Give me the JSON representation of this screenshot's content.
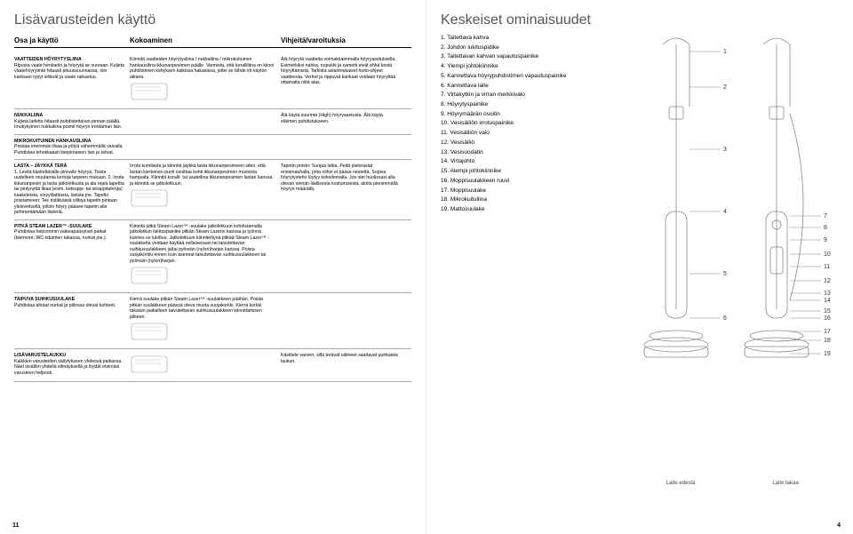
{
  "leftPage": {
    "title": "Lisävarusteiden käyttö",
    "columns": {
      "c1": "Osa ja käyttö",
      "c2": "Kokoaminen",
      "c3": "Vihjeitä/varoituksia"
    },
    "rows": [
      {
        "c1_title": "VAATTEIDEN HÖYRYTYSLIINA",
        "c1_body": "Ripusta vaate henkariin ja höyrytä se suoraan. Kuljeta vaatehöyrytintä hitaasti pituussuunnassa, niin kankaan rypyt siliävät ja vaate raikastuu.",
        "c2_body": "Kiinnitä vaatteiden höyrytysliina / nukkaliina / mikrokuituinen hankausliina ikkunanpesimen päälle. Varmista, että koralliliina on kiinni puhdistimen kehyksen kaikissa hakasissa, jottei se lähde irti käytön aikana.",
        "c3_body": "Älä höyrytä vaatteita voimakkaimmalla höyryasetuksella. Esimerkiksi nahka, nupukki ja sametti eivät ehkä kestä höyryttämistä. Tarkista asianmukaiset hoito-ohjeet vaatteesta. Verhot ja rippuvat kankaat voidaan höyryttää ottamatta niitä alas."
      },
      {
        "c1_title": "NUKKALIINA",
        "c1_body": "Kuljeta laitetta hitaasti puhdistettavan pinnan päällä. Imukykyinen nukkaliina poimii höyryn irrottaman lian.",
        "c2_body": "",
        "c3_body": "Älä käytä suurinta (High) höyryasetusta. Älä käytä eläimen puhdistukseen."
      },
      {
        "c1_title": "MIKROKUITUINEN HANKAUSLIINA",
        "c1_body": "Poistaa enemmän likaa ja pölyä vähemmällä vaivalla. Puhdistaa tehokkaasti itsepintaisen lian ja tahrat.",
        "c2_body": "",
        "c3_body": ""
      },
      {
        "c1_title": "LASTA – JÄYKKÄ TERÄ",
        "c1_body": "1. Levitä käsiteltävälle pinnalle höyryä. Toista uudelleen muutamia kertoja tarpeen mukaan. 2. Irrota ikkunanpesin ja lasta jatkoletkusta ja ala repiä tapettia tai pintynyttä likaa (esim. ketsuppi- tai siirappitahroja) kaakeleista, vinyylilattiasta, lasista jne.\n\nTapetin poistaminen: Tee ristikkäisiä viiltoja tapetin pintaan yleisveitsellä, jolloin höyry pääsee tapetin alle pehmentämään liisteriä.",
        "c2_body": "Irrota kumilasta ja kiinnitä jäykkä lasta ikkunanpesimeen siten, että lastan kierteinen puoli osoittaa kohti ikkunanpesimen muovisia hampaita. Kiinnitä koralli- tai vaateliina ikkunanpesimen lastan kanssa ja kiinnitä se jatkoletkuun.",
        "c3_body": "Tapetin poisto: Suojaa lattia. Peitä pistorasiat eristenauhalla, jotta niihin ei pääse nestettä. Sopiva höyrytysteho löytyy kokeilemalla. Jos olet huolissasi alla olevan seinän liiallisesta kostumisesta, aloita pienimmällä höyryn määrällä."
      },
      {
        "c1_title": "PITKÄ STEAM LAZER™ -SUULAKE",
        "c1_body": "Puhdistaa helpommin vaikeapääsyiset paikat (kiemorot, WC-istuimen takaosa, nurkat jne.).",
        "c2_body": "Kiinnitä pitkä Steam Lazer™ -suulake jatkoletkuun kohdistamalla jatkoletkun lukituspainike pitkän Steam Lazerin kanssa ja työnnä kunnes se lukittuu. Jatkoletkuun kiinnitettynä pitkää Steam Lazer™ -suulaketta voidaan käyttää sellaisenaan tai taivutettavan suihkusuulakkeen ja/tai pyöreän (nylon)harjan kanssa. Poista suojakorkki ennen kuin asennat taivutettavan suihkusuulakkeen tai pyöreän (nylon)harjan.",
        "c3_body": ""
      },
      {
        "c1_title": "TAIPUVA SUIHKUSUULAKE",
        "c1_body": "Puhdistaa ahtaat nurkat ja piilossa olevat kohteet.",
        "c2_body": "Kierrä suulake pitkän Steam Lazer™ -suulakkeen päähän. Poista pitkän suulakkeen päässä oleva musta suojakorkki. Kierrä korkki takaisin paikalleen taivutettavan suihkusuulakkeen kiinnittämisen jälkeen.",
        "c3_body": ""
      },
      {
        "c1_title": "LISÄVARUSTELAUKKU",
        "c1_body": "Kaikkien varusteiden säilytykseen yhdessä paikassa. Näet sisällön yhdellä silmäyksellä ja löydät etsimäsi varusteen helposti.",
        "c2_body": "",
        "c3_body": "Käsittele varoen, sillä terävät välineet saattavat puhkaista laukun."
      }
    ],
    "pageNum": "11"
  },
  "rightPage": {
    "title": "Keskeiset ominaisuudet",
    "features": [
      "1. Taitettava kahva",
      "2. Johdon lukituspidike",
      "3. Taitettavan kahvan vapautuspainike",
      "4. Ylempi johtokiinnike",
      "5. Kannettava höyrypuhdistimen vapautuspainike",
      "6. Kannettava laite",
      "7. Virtakytkin ja virran merkkivalo",
      "8. Höyrytyspainike",
      "9. Höyrymäärän osoitin",
      "10. Vesisäiliön irrotuspainike",
      "11. Vesisäiliön valo",
      "12. Vesisäiliö",
      "13. Vesisuodatin",
      "14. Virtajohto",
      "15. Alempi johtokiinnike",
      "16. Moppisuulakkeen ruuvi",
      "17. Moppisuulake",
      "18. Mikrokuituliina",
      "19. Mattosuulake"
    ],
    "frontLabel": "Laite edestä",
    "backLabel": "Laite takaa",
    "frontCallouts": [
      "1",
      "2",
      "3",
      "4",
      "5",
      "6"
    ],
    "backCallouts": [
      "7",
      "8",
      "9",
      "10",
      "11",
      "12",
      "13",
      "14",
      "15",
      "16",
      "17",
      "18",
      "19"
    ],
    "pageNum": "4",
    "colors": {
      "line": "#888888",
      "text": "#333333"
    }
  }
}
